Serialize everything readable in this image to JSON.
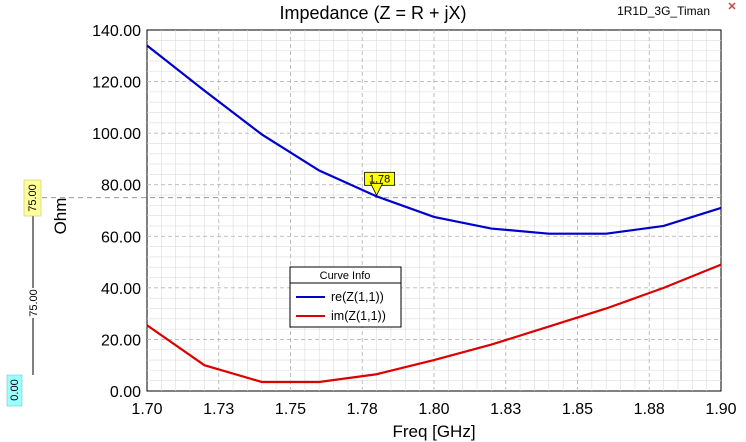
{
  "header": {
    "title": "Impedance (Z = R + jX)",
    "project": "1R1D_3G_Timan"
  },
  "chart_data": {
    "type": "line",
    "title": "Impedance (Z = R + jX)",
    "xlabel": "Freq [GHz]",
    "ylabel": "Ohm",
    "xlim": [
      1.7,
      1.9
    ],
    "ylim": [
      0,
      140
    ],
    "grid": true,
    "x_tick_labels": [
      "1.70",
      "1.73",
      "1.75",
      "1.78",
      "1.80",
      "1.83",
      "1.85",
      "1.88",
      "1.90"
    ],
    "x_tick_values": [
      1.7,
      1.725,
      1.75,
      1.775,
      1.8,
      1.825,
      1.85,
      1.875,
      1.9
    ],
    "y_tick_labels": [
      "0.00",
      "20.00",
      "40.00",
      "60.00",
      "80.00",
      "100.00",
      "120.00",
      "140.00"
    ],
    "y_tick_values": [
      0,
      20,
      40,
      60,
      80,
      100,
      120,
      140
    ],
    "series": [
      {
        "name": "re(Z(1,1))",
        "color": "#0000cc",
        "x": [
          1.7,
          1.72,
          1.74,
          1.76,
          1.78,
          1.8,
          1.82,
          1.84,
          1.86,
          1.88,
          1.9
        ],
        "y": [
          134,
          116.5,
          99.5,
          85.5,
          75.5,
          67.5,
          63,
          61,
          61,
          64,
          71
        ]
      },
      {
        "name": "im(Z(1,1))",
        "color": "#dd0000",
        "x": [
          1.7,
          1.72,
          1.74,
          1.76,
          1.78,
          1.8,
          1.82,
          1.84,
          1.86,
          1.88,
          1.9
        ],
        "y": [
          25.5,
          10,
          3.5,
          3.5,
          6.5,
          12,
          18,
          25,
          32,
          40,
          49
        ]
      }
    ],
    "legend": {
      "title": "Curve Info",
      "placement": "center-left"
    },
    "marker": {
      "label": "1.78",
      "x": 1.78,
      "y": 75.5
    },
    "reference_line": {
      "value": 75
    },
    "side_annotations": {
      "top_value": "75.00",
      "middle_value": "75.00",
      "bottom_value": "0.00",
      "top_color": "#ffff99",
      "bottom_color": "#99ffff"
    }
  }
}
